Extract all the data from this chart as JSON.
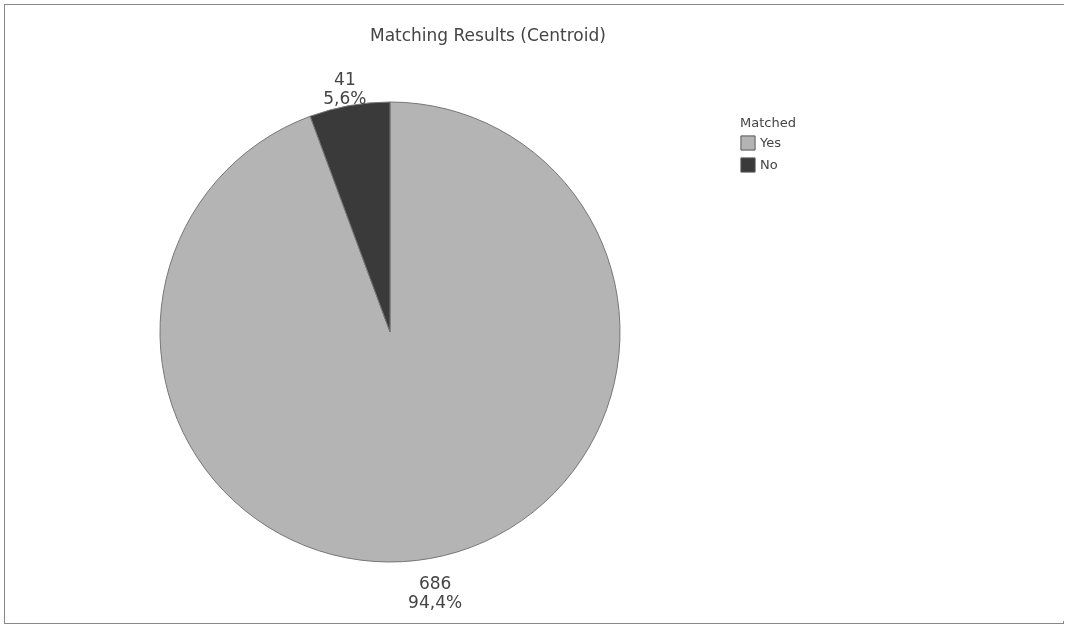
{
  "chart_data": {
    "type": "pie",
    "title": "Matching Results (Centroid)",
    "legend_title": "Matched",
    "categories": [
      "Yes",
      "No"
    ],
    "values": [
      686,
      41
    ],
    "colors": [
      "#b4b4b4",
      "#3a3a3a"
    ],
    "value_labels": [
      "686\n94,4%",
      "41\n5,6%"
    ],
    "legend": "top right"
  }
}
